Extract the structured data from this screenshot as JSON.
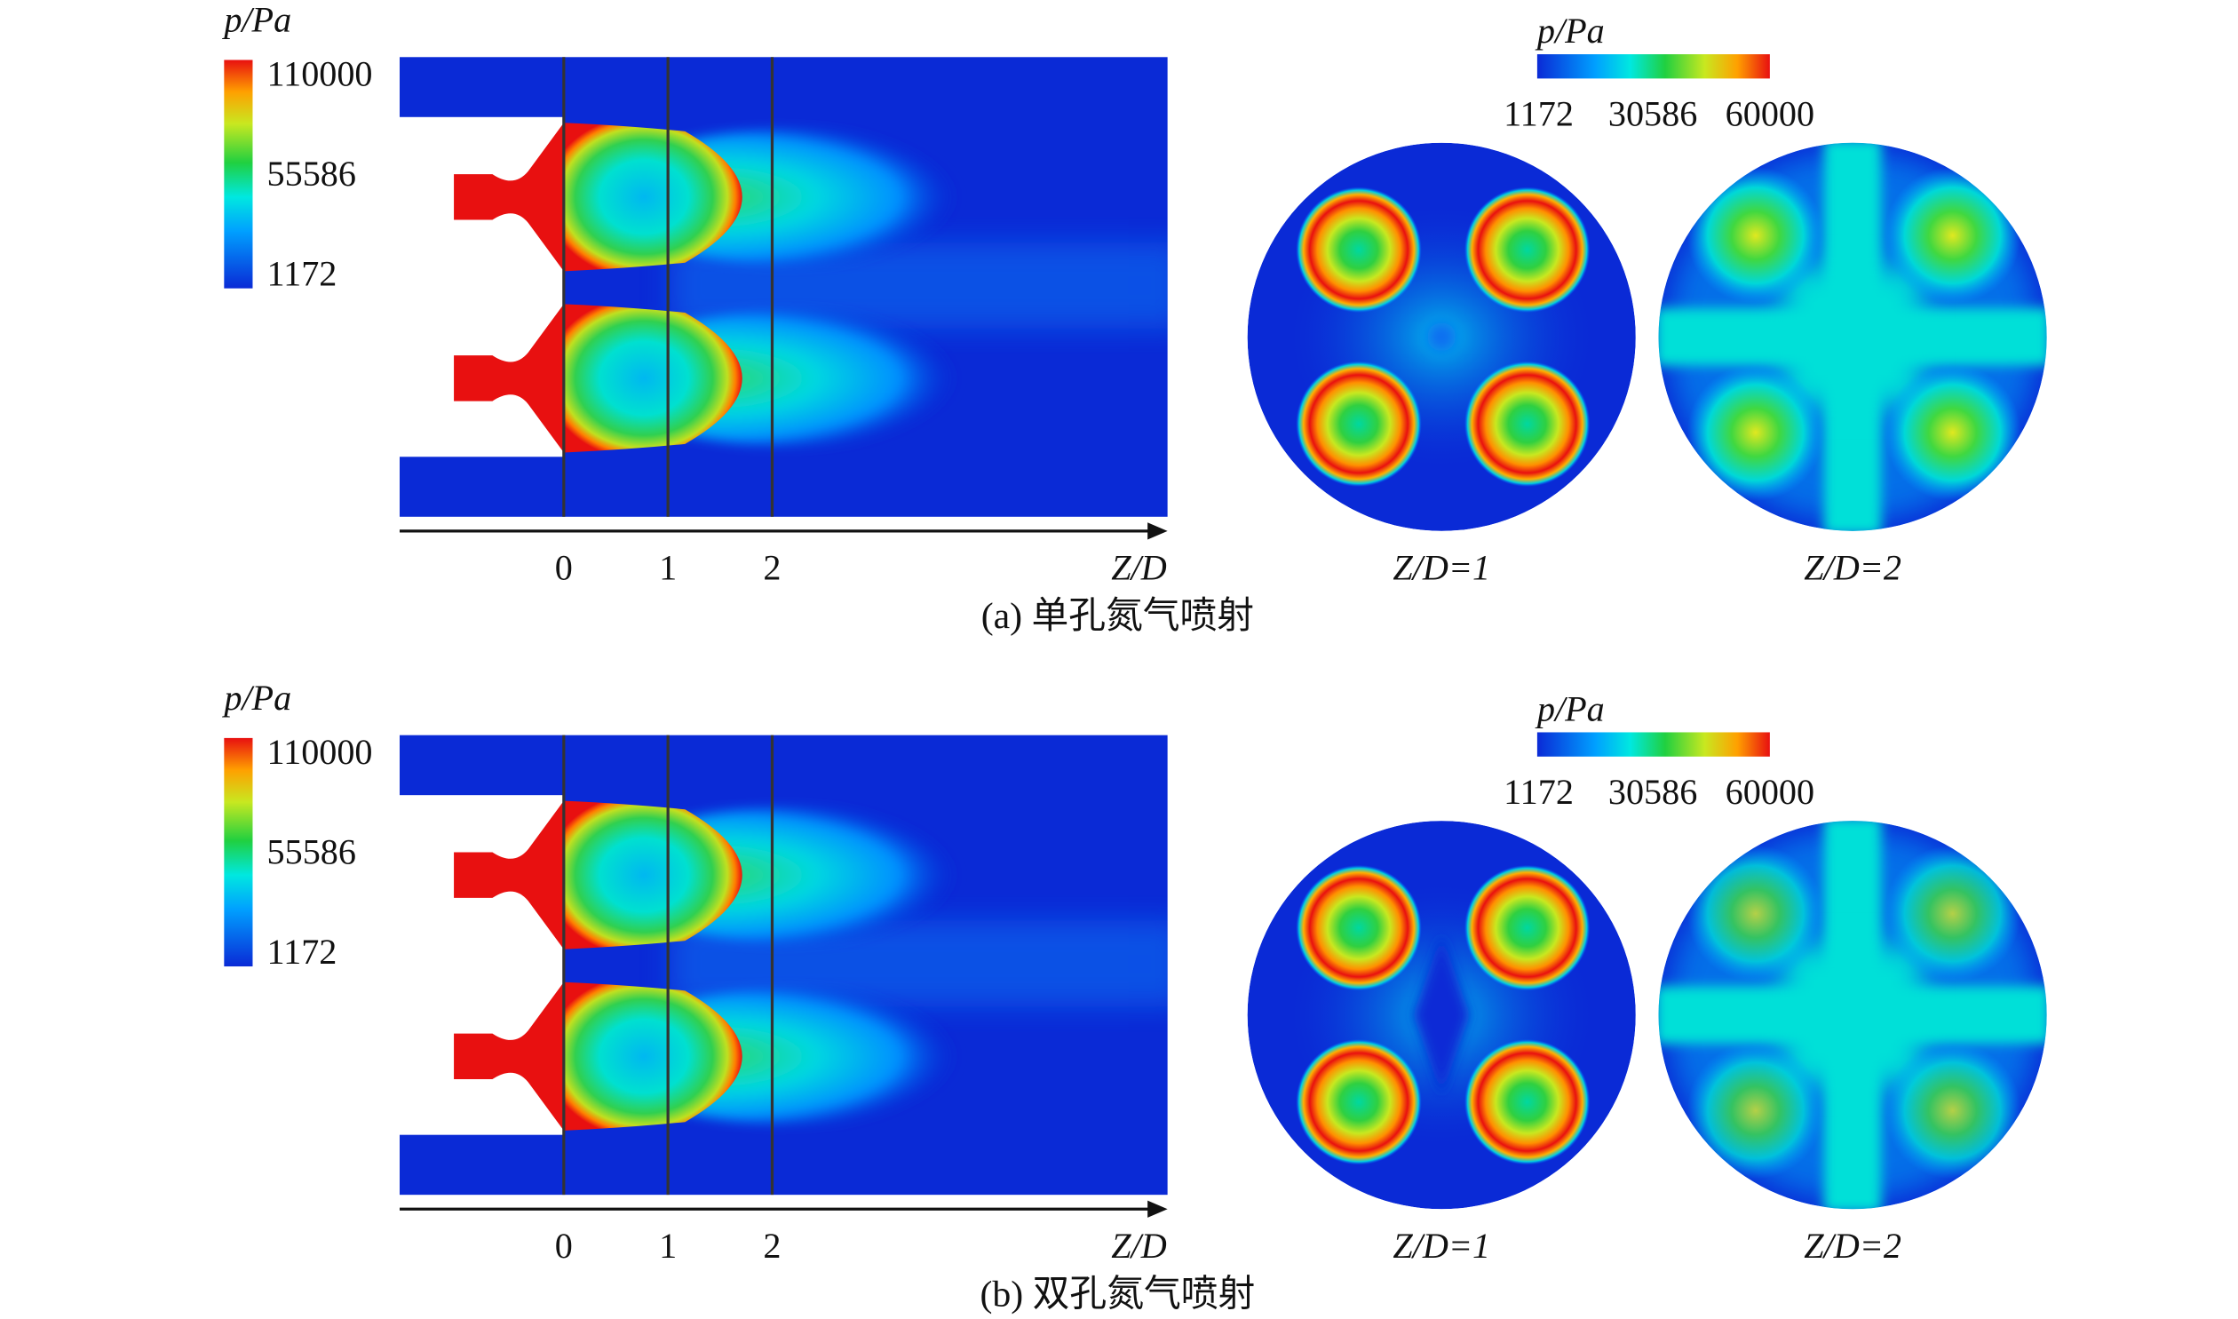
{
  "panels": [
    {
      "caption": "(a) 单孔氮气喷射",
      "side_view": {
        "colorbar": {
          "title": "p/Pa",
          "ticks": [
            110000,
            55586,
            1172
          ]
        },
        "axis": {
          "label": "Z/D",
          "ticks": [
            0,
            1,
            2
          ]
        }
      },
      "cross_sections": {
        "colorbar": {
          "title": "p/Pa",
          "ticks": [
            1172,
            30586,
            60000
          ]
        },
        "labels": [
          "Z/D=1",
          "Z/D=2"
        ]
      }
    },
    {
      "caption": "(b) 双孔氮气喷射",
      "side_view": {
        "colorbar": {
          "title": "p/Pa",
          "ticks": [
            110000,
            55586,
            1172
          ]
        },
        "axis": {
          "label": "Z/D",
          "ticks": [
            0,
            1,
            2
          ]
        }
      },
      "cross_sections": {
        "colorbar": {
          "title": "p/Pa",
          "ticks": [
            1172,
            30586,
            60000
          ]
        },
        "labels": [
          "Z/D=1",
          "Z/D=2"
        ]
      }
    }
  ]
}
